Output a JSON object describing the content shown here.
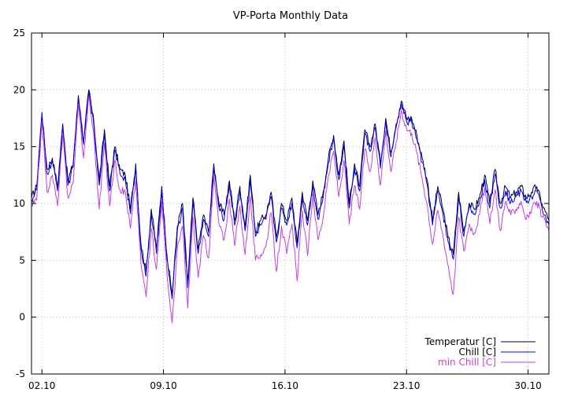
{
  "chart_data": {
    "type": "line",
    "title": "VP-Porta Monthly Data",
    "xlabel": "",
    "ylabel": "",
    "xlim": [
      1.4,
      31.2
    ],
    "ylim": [
      -5,
      25
    ],
    "grid": true,
    "legend_position": "bottom-right",
    "x_ticks": [
      {
        "value": 2,
        "label": "02.10"
      },
      {
        "value": 9,
        "label": "09.10"
      },
      {
        "value": 16,
        "label": "16.10"
      },
      {
        "value": 23,
        "label": "23.10"
      },
      {
        "value": 30,
        "label": "30.10"
      }
    ],
    "y_ticks": [
      -5,
      0,
      5,
      10,
      15,
      20,
      25
    ],
    "series": [
      {
        "name": "Temperatur [C]",
        "color": "#000040",
        "x": [
          1.4,
          1.7,
          2.0,
          2.3,
          2.6,
          2.9,
          3.2,
          3.5,
          3.8,
          4.1,
          4.4,
          4.7,
          5.0,
          5.3,
          5.6,
          5.9,
          6.2,
          6.5,
          6.8,
          7.1,
          7.4,
          7.7,
          8.0,
          8.3,
          8.6,
          8.9,
          9.2,
          9.5,
          9.8,
          10.1,
          10.4,
          10.7,
          11.0,
          11.3,
          11.6,
          11.9,
          12.2,
          12.5,
          12.8,
          13.1,
          13.4,
          13.7,
          14.0,
          14.3,
          14.6,
          14.9,
          15.2,
          15.5,
          15.8,
          16.1,
          16.4,
          16.7,
          17.0,
          17.3,
          17.6,
          17.9,
          18.2,
          18.5,
          18.8,
          19.1,
          19.4,
          19.7,
          20.0,
          20.3,
          20.6,
          20.9,
          21.2,
          21.5,
          21.8,
          22.1,
          22.4,
          22.7,
          23.0,
          23.3,
          23.6,
          23.9,
          24.2,
          24.5,
          24.8,
          25.1,
          25.4,
          25.7,
          26.0,
          26.3,
          26.6,
          26.9,
          27.2,
          27.5,
          27.8,
          28.1,
          28.4,
          28.7,
          29.0,
          29.3,
          29.6,
          29.9,
          30.2,
          30.5,
          30.8,
          31.2
        ],
        "values": [
          10.5,
          11.5,
          18.0,
          13.0,
          14.0,
          11.5,
          17.0,
          12.0,
          13.5,
          19.5,
          15.5,
          20.0,
          17.0,
          12.0,
          16.5,
          11.5,
          15.0,
          13.0,
          12.5,
          9.5,
          13.5,
          6.5,
          4.0,
          9.5,
          6.0,
          11.5,
          5.5,
          2.0,
          8.0,
          10.0,
          3.0,
          10.5,
          6.0,
          9.0,
          7.5,
          13.5,
          10.0,
          9.0,
          12.0,
          8.5,
          11.5,
          8.0,
          12.5,
          7.5,
          8.5,
          9.0,
          11.0,
          7.0,
          10.0,
          8.5,
          10.5,
          6.5,
          11.0,
          8.5,
          12.0,
          9.0,
          11.0,
          14.0,
          16.0,
          12.5,
          15.5,
          10.0,
          13.5,
          11.5,
          16.5,
          15.0,
          17.0,
          13.5,
          17.5,
          14.5,
          17.0,
          19.0,
          17.5,
          17.5,
          16.0,
          14.0,
          12.0,
          8.5,
          11.5,
          9.5,
          7.0,
          5.5,
          11.0,
          7.5,
          10.0,
          9.5,
          10.5,
          12.5,
          10.0,
          13.0,
          10.0,
          11.5,
          10.5,
          11.0,
          11.5,
          10.5,
          11.0,
          11.5,
          10.0,
          8.5
        ]
      },
      {
        "name": "Chill [C]",
        "color": "#0000e0",
        "x": [
          1.4,
          1.7,
          2.0,
          2.3,
          2.6,
          2.9,
          3.2,
          3.5,
          3.8,
          4.1,
          4.4,
          4.7,
          5.0,
          5.3,
          5.6,
          5.9,
          6.2,
          6.5,
          6.8,
          7.1,
          7.4,
          7.7,
          8.0,
          8.3,
          8.6,
          8.9,
          9.2,
          9.5,
          9.8,
          10.1,
          10.4,
          10.7,
          11.0,
          11.3,
          11.6,
          11.9,
          12.2,
          12.5,
          12.8,
          13.1,
          13.4,
          13.7,
          14.0,
          14.3,
          14.6,
          14.9,
          15.2,
          15.5,
          15.8,
          16.1,
          16.4,
          16.7,
          17.0,
          17.3,
          17.6,
          17.9,
          18.2,
          18.5,
          18.8,
          19.1,
          19.4,
          19.7,
          20.0,
          20.3,
          20.6,
          20.9,
          21.2,
          21.5,
          21.8,
          22.1,
          22.4,
          22.7,
          23.0,
          23.3,
          23.6,
          23.9,
          24.2,
          24.5,
          24.8,
          25.1,
          25.4,
          25.7,
          26.0,
          26.3,
          26.6,
          26.9,
          27.2,
          27.5,
          27.8,
          28.1,
          28.4,
          28.7,
          29.0,
          29.3,
          29.6,
          29.9,
          30.2,
          30.5,
          30.8,
          31.2
        ],
        "values": [
          10.3,
          11.2,
          17.8,
          12.6,
          13.7,
          11.1,
          16.8,
          11.6,
          13.2,
          19.3,
          15.2,
          19.8,
          16.7,
          11.6,
          16.2,
          11.1,
          14.7,
          12.6,
          12.1,
          9.1,
          13.2,
          6.1,
          3.6,
          9.1,
          5.6,
          11.1,
          5.1,
          1.6,
          7.6,
          9.6,
          2.6,
          10.1,
          5.6,
          8.6,
          7.1,
          13.2,
          9.6,
          8.6,
          11.7,
          8.1,
          11.1,
          7.6,
          12.1,
          7.1,
          8.1,
          8.6,
          10.6,
          6.6,
          9.6,
          8.1,
          10.1,
          6.1,
          10.6,
          8.1,
          11.6,
          8.6,
          10.6,
          13.6,
          15.7,
          12.1,
          15.1,
          9.6,
          13.1,
          11.1,
          16.2,
          14.6,
          16.7,
          13.1,
          17.2,
          14.1,
          16.7,
          18.8,
          17.2,
          17.2,
          15.7,
          13.6,
          11.6,
          8.1,
          11.1,
          9.1,
          6.6,
          5.1,
          10.6,
          7.1,
          9.6,
          9.1,
          10.1,
          12.1,
          9.6,
          12.6,
          9.6,
          11.1,
          10.1,
          10.6,
          11.1,
          10.1,
          10.6,
          11.1,
          9.6,
          8.1
        ]
      },
      {
        "name": "min Chill [C]",
        "color": "#c040e0",
        "x": [
          1.4,
          1.7,
          2.0,
          2.3,
          2.6,
          2.9,
          3.2,
          3.5,
          3.8,
          4.1,
          4.4,
          4.7,
          5.0,
          5.3,
          5.6,
          5.9,
          6.2,
          6.5,
          6.8,
          7.1,
          7.4,
          7.7,
          8.0,
          8.3,
          8.6,
          8.9,
          9.2,
          9.5,
          9.8,
          10.1,
          10.4,
          10.7,
          11.0,
          11.3,
          11.6,
          11.9,
          12.2,
          12.5,
          12.8,
          13.1,
          13.4,
          13.7,
          14.0,
          14.3,
          14.6,
          14.9,
          15.2,
          15.5,
          15.8,
          16.1,
          16.4,
          16.7,
          17.0,
          17.3,
          17.6,
          17.9,
          18.2,
          18.5,
          18.8,
          19.1,
          19.4,
          19.7,
          20.0,
          20.3,
          20.6,
          20.9,
          21.2,
          21.5,
          21.8,
          22.1,
          22.4,
          22.7,
          23.0,
          23.3,
          23.6,
          23.9,
          24.2,
          24.5,
          24.8,
          25.1,
          25.4,
          25.7,
          26.0,
          26.3,
          26.6,
          26.9,
          27.2,
          27.5,
          27.8,
          28.1,
          28.4,
          28.7,
          29.0,
          29.3,
          29.6,
          29.9,
          30.2,
          30.5,
          30.8,
          31.2
        ],
        "values": [
          9.8,
          10.3,
          17.2,
          11.0,
          12.5,
          9.8,
          16.0,
          10.5,
          11.8,
          18.8,
          14.0,
          19.4,
          15.8,
          9.5,
          15.3,
          9.8,
          13.8,
          11.2,
          11.0,
          7.8,
          12.0,
          4.8,
          1.8,
          7.8,
          4.2,
          10.2,
          3.8,
          -0.5,
          6.0,
          8.0,
          0.8,
          8.8,
          3.5,
          7.2,
          5.2,
          12.3,
          8.2,
          6.8,
          10.4,
          6.3,
          9.8,
          5.5,
          10.6,
          5.0,
          5.5,
          6.2,
          9.2,
          4.0,
          8.0,
          5.6,
          8.2,
          3.2,
          9.4,
          5.4,
          10.8,
          6.8,
          8.8,
          12.4,
          14.6,
          10.6,
          13.8,
          8.2,
          11.6,
          9.5,
          14.8,
          12.8,
          15.8,
          11.6,
          16.4,
          12.8,
          15.4,
          18.2,
          16.6,
          16.2,
          14.4,
          12.2,
          9.8,
          6.4,
          9.4,
          7.2,
          4.5,
          2.0,
          8.8,
          5.8,
          8.2,
          7.4,
          9.0,
          11.4,
          8.2,
          11.2,
          7.6,
          10.2,
          9.0,
          9.5,
          10.2,
          8.6,
          9.4,
          10.2,
          8.8,
          7.6
        ]
      }
    ]
  }
}
